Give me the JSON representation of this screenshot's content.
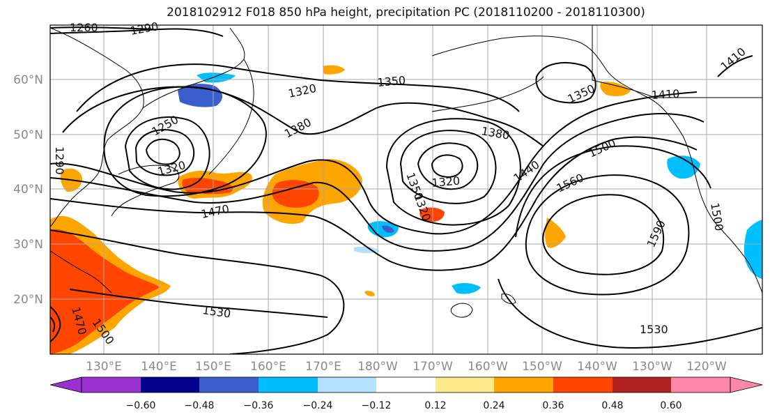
{
  "title": "2018102912 F018 850 hPa height, precipitation PC (2018110200 - 2018110300)",
  "lat_labels": [
    "60°N",
    "50°N",
    "40°N",
    "30°N",
    "20°N"
  ],
  "lon_labels": [
    "130°E",
    "140°E",
    "150°E",
    "160°E",
    "170°E",
    "180°W",
    "170°W",
    "160°W",
    "150°W",
    "140°W",
    "130°W",
    "120°W"
  ],
  "colorbar": {
    "colors": [
      "#9b30d0",
      "#00008b",
      "#3a5fcd",
      "#00bfff",
      "#b2e2ff",
      "#ffffff",
      "#fee98a",
      "#ffa500",
      "#ff4500",
      "#b22222",
      "#ff88aa"
    ],
    "tick_labels": [
      "−0.60",
      "−0.48",
      "−0.36",
      "−0.24",
      "−0.12",
      "0.12",
      "0.24",
      "0.36",
      "0.48",
      "0.60"
    ]
  },
  "contour_labels": [
    {
      "text": "1260"
    },
    {
      "text": "1290"
    },
    {
      "text": "1320"
    },
    {
      "text": "1350"
    },
    {
      "text": "1380"
    },
    {
      "text": "1320"
    },
    {
      "text": "1350"
    },
    {
      "text": "1380"
    },
    {
      "text": "1350"
    },
    {
      "text": "1320"
    },
    {
      "text": "1410"
    },
    {
      "text": "1410"
    },
    {
      "text": "1440"
    },
    {
      "text": "1500"
    },
    {
      "text": "1560"
    },
    {
      "text": "1590"
    },
    {
      "text": "1470"
    },
    {
      "text": "1530"
    },
    {
      "text": "1500"
    },
    {
      "text": "1470"
    },
    {
      "text": "1530"
    },
    {
      "text": "1500"
    },
    {
      "text": "1250"
    },
    {
      "text": "1320"
    },
    {
      "text": "1290"
    }
  ],
  "map_colors": {
    "contour": "#000000",
    "grid": "#a8a8a8",
    "coast": "#000000"
  }
}
